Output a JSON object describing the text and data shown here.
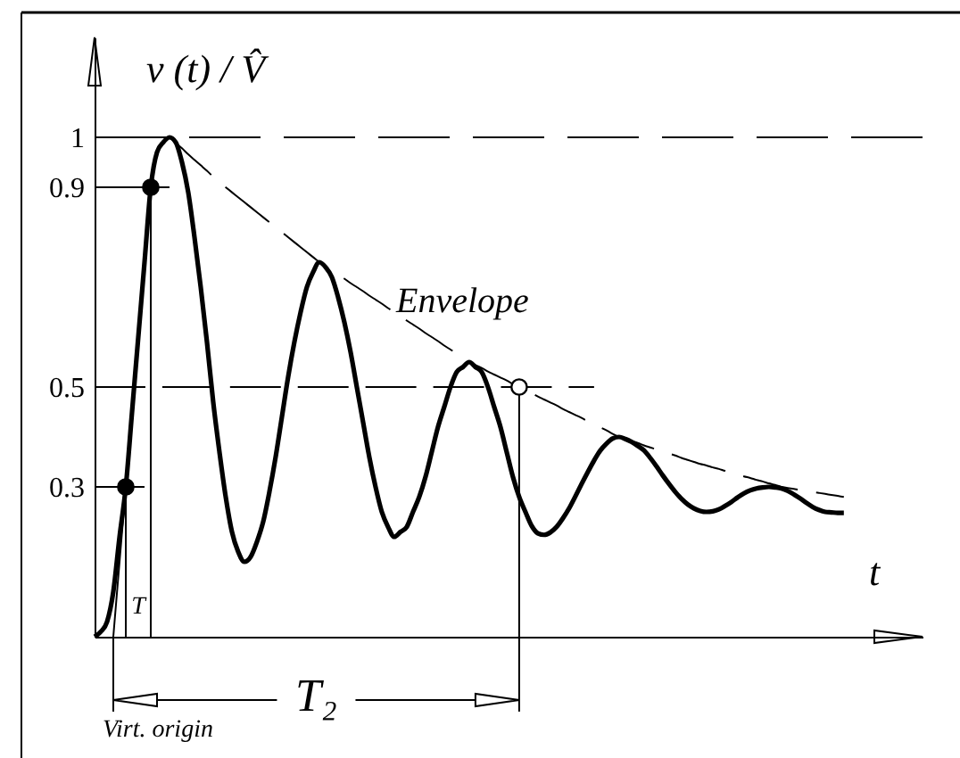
{
  "chart_data": {
    "type": "line",
    "xlabel": "t",
    "ylabel": "v (t) / V̂",
    "annotations": [
      "Envelope",
      "T",
      "T₂",
      "Virt. origin"
    ],
    "categories": [
      null,
      null,
      null,
      null,
      null,
      null,
      null,
      null,
      null,
      null,
      null,
      null,
      null,
      null,
      null,
      null,
      null,
      null,
      null,
      null,
      null,
      null,
      null,
      null,
      null,
      null,
      null,
      null,
      null,
      null,
      null,
      null,
      null,
      null,
      null,
      null,
      null,
      null,
      null,
      null,
      null,
      null,
      null,
      null,
      null,
      null,
      null,
      null,
      null,
      null,
      null,
      null,
      null,
      null,
      null,
      null,
      null,
      null,
      null,
      null,
      null,
      null,
      null,
      null,
      null,
      null,
      null,
      null,
      null,
      null,
      null,
      null,
      null,
      null,
      null,
      null,
      null,
      null,
      null,
      null,
      null,
      null,
      null,
      null,
      null,
      null,
      null,
      null,
      null,
      null,
      null,
      null,
      null,
      null,
      null,
      null,
      null,
      null,
      null,
      null,
      null,
      null,
      null,
      null,
      null,
      null,
      null,
      null,
      null,
      null,
      null,
      null,
      null,
      null,
      null,
      null,
      null,
      null,
      null,
      null,
      null
    ],
    "ylim": [
      0,
      1.2
    ],
    "yticks": [
      0.3,
      0.5,
      0.9,
      1
    ],
    "tick_labels": "y",
    "ref_lines": [
      {
        "axis": "y",
        "value": 1,
        "color": "#000000",
        "line_style": "dashed"
      }
    ],
    "series": [
      {
        "color": "#000000",
        "values": [
          0,
          0.01,
          0.03,
          0.09,
          0.2,
          0.3,
          0.45,
          0.6,
          0.75,
          0.9,
          0.97,
          0.99,
          1,
          0.99,
          0.95,
          0.89,
          0.8,
          0.7,
          0.59,
          0.47,
          0.37,
          0.28,
          0.21,
          0.17,
          0.15,
          0.16,
          0.19,
          0.23,
          0.29,
          0.36,
          0.44,
          0.52,
          0.59,
          0.65,
          0.7,
          0.73,
          0.75,
          0.74,
          0.72,
          0.68,
          0.63,
          0.57,
          0.5,
          0.43,
          0.36,
          0.3,
          0.25,
          0.22,
          0.2,
          0.21,
          0.22,
          0.25,
          0.28,
          0.32,
          0.37,
          0.42,
          0.46,
          0.5,
          0.53,
          0.54,
          0.55,
          0.54,
          0.53,
          0.5,
          0.46,
          0.42,
          0.37,
          0.32,
          0.28,
          0.25,
          0.222,
          0.207,
          0.204,
          0.209,
          0.22,
          0.237,
          0.257,
          0.281,
          0.306,
          0.33,
          0.353,
          0.373,
          0.387,
          0.397,
          0.4,
          0.396,
          0.39,
          0.382,
          0.373,
          0.358,
          0.341,
          0.323,
          0.306,
          0.29,
          0.276,
          0.265,
          0.257,
          0.252,
          0.25,
          0.251,
          0.255,
          0.262,
          0.27,
          0.279,
          0.287,
          0.293,
          0.297,
          0.299,
          0.3,
          0.299,
          0.297,
          0.292,
          0.285,
          0.277,
          0.268,
          0.26,
          0.254,
          0.25,
          0.249,
          0.248,
          0.248
        ]
      },
      {
        "color": "#000000",
        "line_style": "dashed",
        "values": [
          null,
          null,
          null,
          null,
          null,
          null,
          null,
          null,
          null,
          null,
          null,
          null,
          1,
          0.989,
          0.978,
          0.966,
          0.955,
          0.944,
          0.933,
          0.921,
          0.91,
          0.9,
          0.89,
          0.88,
          0.87,
          0.86,
          0.85,
          0.84,
          0.83,
          0.82,
          0.81,
          0.8,
          0.79,
          0.78,
          0.77,
          0.76,
          0.75,
          0.742,
          0.733,
          0.725,
          0.717,
          0.708,
          0.7,
          0.692,
          0.683,
          0.675,
          0.667,
          0.658,
          0.65,
          0.642,
          0.633,
          0.625,
          0.617,
          0.608,
          0.6,
          0.592,
          0.583,
          0.575,
          0.567,
          0.558,
          0.55,
          0.544,
          0.538,
          0.531,
          0.525,
          0.519,
          0.513,
          0.506,
          0.5,
          0.494,
          0.488,
          0.481,
          0.475,
          0.469,
          0.463,
          0.456,
          0.45,
          0.444,
          0.438,
          0.431,
          0.425,
          0.419,
          0.413,
          0.406,
          0.4,
          0.396,
          0.392,
          0.388,
          0.383,
          0.379,
          0.375,
          0.371,
          0.367,
          0.363,
          0.358,
          0.354,
          0.35,
          0.346,
          0.343,
          0.339,
          0.336,
          0.332,
          0.329,
          0.325,
          0.321,
          0.318,
          0.314,
          0.311,
          0.307,
          0.304,
          0.3,
          0.298,
          0.296,
          0.294,
          0.292,
          0.29,
          0.288,
          0.286,
          0.284,
          0.282,
          0.28
        ]
      },
      {
        "color": "#000000",
        "values": [
          0.9,
          0.9,
          0.9,
          0.9,
          0.9,
          0.9,
          0.9,
          0.9,
          0.9,
          0.9,
          0.9,
          0.9,
          0.9,
          null,
          null,
          null,
          null,
          null,
          null,
          null,
          null,
          null,
          null,
          null,
          null,
          null,
          null,
          null,
          null,
          null,
          null,
          null,
          null,
          null,
          null,
          null,
          null,
          null,
          null,
          null,
          null,
          null,
          null,
          null,
          null,
          null,
          null,
          null,
          null,
          null,
          null,
          null,
          null,
          null,
          null,
          null,
          null,
          null,
          null,
          null,
          null,
          null,
          null,
          null,
          null,
          null,
          null,
          null,
          null,
          null,
          null,
          null,
          null,
          null,
          null,
          null,
          null,
          null,
          null,
          null,
          null,
          null,
          null,
          null,
          null,
          null,
          null,
          null,
          null,
          null,
          null,
          null,
          null,
          null,
          null,
          null,
          null,
          null,
          null,
          null,
          null,
          null,
          null,
          null,
          null,
          null,
          null,
          null,
          null,
          null,
          null,
          null,
          null,
          null,
          null,
          null,
          null,
          null,
          null,
          null,
          null
        ]
      },
      {
        "color": "#000000",
        "values": [
          0.3,
          0.3,
          0.3,
          0.3,
          0.3,
          0.3,
          0.3,
          0.3,
          0.3,
          null,
          null,
          null,
          null,
          null,
          null,
          null,
          null,
          null,
          null,
          null,
          null,
          null,
          null,
          null,
          null,
          null,
          null,
          null,
          null,
          null,
          null,
          null,
          null,
          null,
          null,
          null,
          null,
          null,
          null,
          null,
          null,
          null,
          null,
          null,
          null,
          null,
          null,
          null,
          null,
          null,
          null,
          null,
          null,
          null,
          null,
          null,
          null,
          null,
          null,
          null,
          null,
          null,
          null,
          null,
          null,
          null,
          null,
          null,
          null,
          null,
          null,
          null,
          null,
          null,
          null,
          null,
          null,
          null,
          null,
          null,
          null,
          null,
          null,
          null,
          null,
          null,
          null,
          null,
          null,
          null,
          null,
          null,
          null,
          null,
          null,
          null,
          null,
          null,
          null,
          null,
          null,
          null,
          null,
          null,
          null,
          null,
          null,
          null,
          null,
          null,
          null,
          null,
          null,
          null,
          null,
          null,
          null,
          null,
          null,
          null,
          null
        ]
      },
      {
        "color": "#000000",
        "line_style": "dashed",
        "values": [
          0.5,
          0.5,
          0.5,
          0.5,
          0.5,
          0.5,
          0.5,
          0.5,
          0.5,
          0.5,
          0.5,
          0.5,
          0.5,
          0.5,
          0.5,
          0.5,
          0.5,
          0.5,
          0.5,
          0.5,
          0.5,
          0.5,
          0.5,
          0.5,
          0.5,
          0.5,
          0.5,
          0.5,
          0.5,
          0.5,
          0.5,
          0.5,
          0.5,
          0.5,
          0.5,
          0.5,
          0.5,
          0.5,
          0.5,
          0.5,
          0.5,
          0.5,
          0.5,
          0.5,
          0.5,
          0.5,
          0.5,
          0.5,
          0.5,
          0.5,
          0.5,
          0.5,
          0.5,
          0.5,
          0.5,
          0.5,
          0.5,
          0.5,
          0.5,
          0.5,
          0.5,
          0.5,
          0.5,
          0.5,
          0.5,
          0.5,
          0.5,
          0.5,
          0.5,
          0.5,
          0.5,
          0.5,
          0.5,
          0.5,
          0.5,
          0.5,
          0.5,
          0.5,
          0.5,
          0.5,
          0.5,
          null,
          null,
          null,
          null,
          null,
          null,
          null,
          null,
          null,
          null,
          null,
          null,
          null,
          null,
          null,
          null,
          null,
          null,
          null,
          null,
          null,
          null,
          null,
          null,
          null,
          null,
          null,
          null,
          null,
          null,
          null,
          null,
          null,
          null,
          null,
          null,
          null,
          null,
          null,
          null
        ]
      },
      {
        "color": "#000000",
        "values": [
          null,
          null,
          null,
          0,
          0.15,
          0.3,
          0.45,
          0.6,
          0.75,
          0.9,
          null,
          null,
          null,
          null,
          null,
          null,
          null,
          null,
          null,
          null,
          null,
          null,
          null,
          null,
          null,
          null,
          null,
          null,
          null,
          null,
          null,
          null,
          null,
          null,
          null,
          null,
          null,
          null,
          null,
          null,
          null,
          null,
          null,
          null,
          null,
          null,
          null,
          null,
          null,
          null,
          null,
          null,
          null,
          null,
          null,
          null,
          null,
          null,
          null,
          null,
          null,
          null,
          null,
          null,
          null,
          null,
          null,
          null,
          null,
          null,
          null,
          null,
          null,
          null,
          null,
          null,
          null,
          null,
          null,
          null,
          null,
          null,
          null,
          null,
          null,
          null,
          null,
          null,
          null,
          null,
          null,
          null,
          null,
          null,
          null,
          null,
          null,
          null,
          null,
          null,
          null,
          null,
          null,
          null,
          null,
          null,
          null,
          null,
          null,
          null,
          null,
          null,
          null,
          null,
          null,
          null,
          null,
          null,
          null,
          null,
          null
        ]
      },
      {
        "type": "scatter",
        "color": "#000000",
        "marker": "circle",
        "values": [
          null,
          null,
          null,
          null,
          null,
          0.3,
          null,
          null,
          null,
          0.9,
          null,
          null,
          null,
          null,
          null,
          null,
          null,
          null,
          null,
          null,
          null,
          null,
          null,
          null,
          null,
          null,
          null,
          null,
          null,
          null,
          null,
          null,
          null,
          null,
          null,
          null,
          null,
          null,
          null,
          null,
          null,
          null,
          null,
          null,
          null,
          null,
          null,
          null,
          null,
          null,
          null,
          null,
          null,
          null,
          null,
          null,
          null,
          null,
          null,
          null,
          null,
          null,
          null,
          null,
          null,
          null,
          null,
          null,
          null,
          null,
          null,
          null,
          null,
          null,
          null,
          null,
          null,
          null,
          null,
          null,
          null,
          null,
          null,
          null,
          null,
          null,
          null,
          null,
          null,
          null,
          null,
          null,
          null,
          null,
          null,
          null,
          null,
          null,
          null,
          null,
          null,
          null,
          null,
          null,
          null,
          null,
          null,
          null,
          null,
          null,
          null,
          null,
          null,
          null,
          null,
          null,
          null,
          null,
          null,
          null,
          null
        ]
      },
      {
        "type": "scatter",
        "color": "#ffffff",
        "marker": "circle",
        "values": [
          null,
          null,
          null,
          null,
          null,
          null,
          null,
          null,
          null,
          null,
          null,
          null,
          null,
          null,
          null,
          null,
          null,
          null,
          null,
          null,
          null,
          null,
          null,
          null,
          null,
          null,
          null,
          null,
          null,
          null,
          null,
          null,
          null,
          null,
          null,
          null,
          null,
          null,
          null,
          null,
          null,
          null,
          null,
          null,
          null,
          null,
          null,
          null,
          null,
          null,
          null,
          null,
          null,
          null,
          null,
          null,
          null,
          null,
          null,
          null,
          null,
          null,
          null,
          null,
          null,
          null,
          null,
          null,
          0.5,
          null,
          null,
          null,
          null,
          null,
          null,
          null,
          null,
          null,
          null,
          null,
          null,
          null,
          null,
          null,
          null,
          null,
          null,
          null,
          null,
          null,
          null,
          null,
          null,
          null,
          null,
          null,
          null,
          null,
          null,
          null,
          null,
          null,
          null,
          null,
          null,
          null,
          null,
          null,
          null,
          null,
          null,
          null,
          null,
          null,
          null,
          null,
          null,
          null,
          null,
          null,
          null
        ]
      }
    ]
  }
}
